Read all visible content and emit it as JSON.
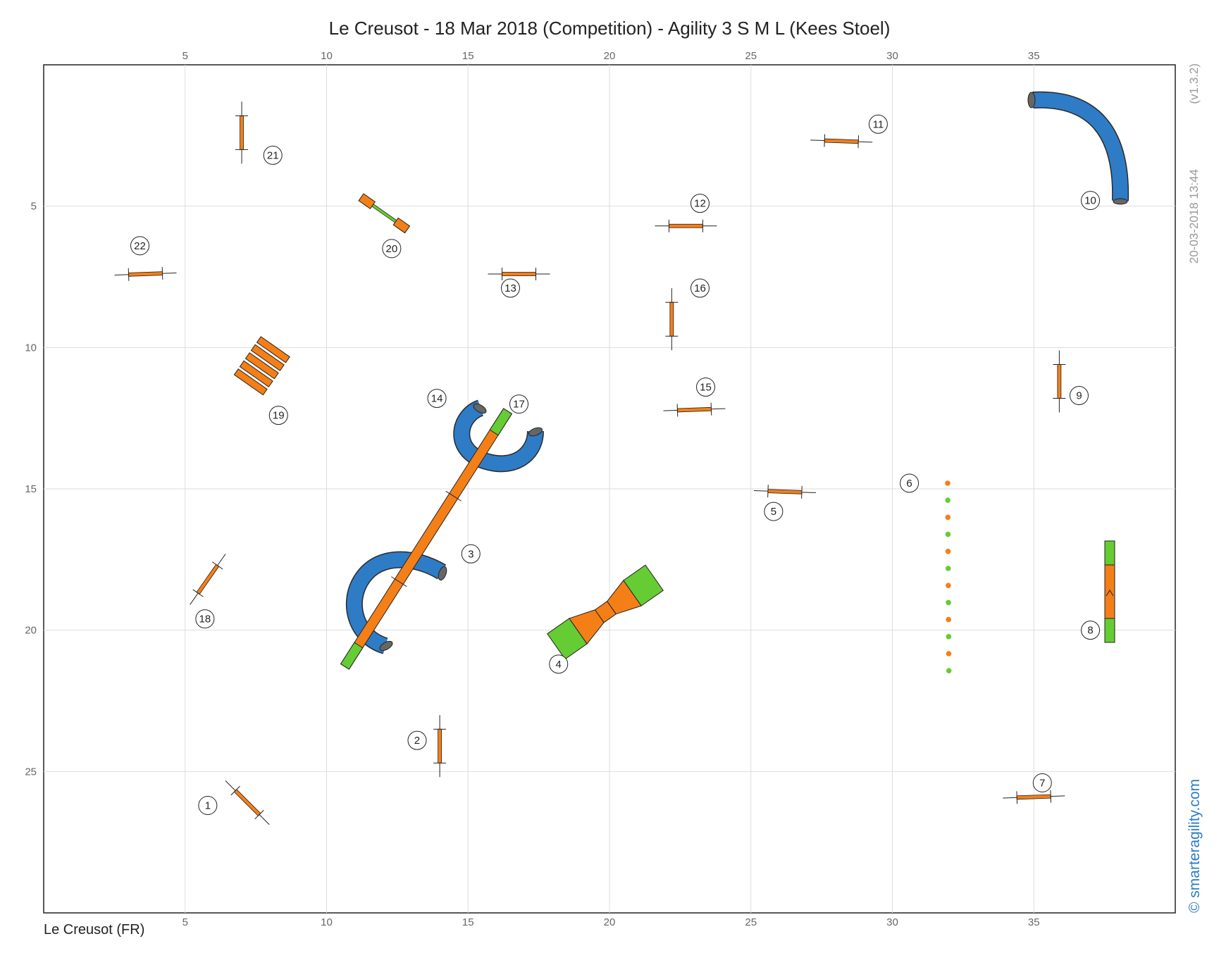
{
  "title": "Le Creusot - 18 Mar 2018 (Competition) - Agility 3 S M L (Kees Stoel)",
  "location": "Le Creusot (FR)",
  "timestamp": "20-03-2018 13:44",
  "version": "(v1.3.2)",
  "brand": "© smarteragility.com",
  "colors": {
    "orange": "#f57f17",
    "green": "#66cc33",
    "blue": "#2e7cc6",
    "grid": "#dddddd",
    "label_circle": "#222222"
  },
  "field": {
    "x_range": [
      0,
      40
    ],
    "y_range": [
      0,
      30
    ]
  },
  "x_ticks": [
    {
      "value": 5,
      "label": "5"
    },
    {
      "value": 10,
      "label": "10"
    },
    {
      "value": 15,
      "label": "15"
    },
    {
      "value": 20,
      "label": "20"
    },
    {
      "value": 25,
      "label": "25"
    },
    {
      "value": 30,
      "label": "30"
    },
    {
      "value": 35,
      "label": "35"
    }
  ],
  "y_ticks": [
    {
      "value": 5,
      "label": "5"
    },
    {
      "value": 10,
      "label": "10"
    },
    {
      "value": 15,
      "label": "15"
    },
    {
      "value": 20,
      "label": "20"
    },
    {
      "value": 25,
      "label": "25"
    }
  ],
  "chart_data": {
    "type": "agility course map",
    "jumps": [
      {
        "number": "1",
        "x": 7.2,
        "y": 26.1,
        "angle": 45
      },
      {
        "number": "2",
        "x": 14.0,
        "y": 24.1,
        "angle": 90
      },
      {
        "number": "5",
        "x": 26.2,
        "y": 15.1,
        "angle": 2
      },
      {
        "number": "7",
        "x": 35.0,
        "y": 25.9,
        "angle": -2
      },
      {
        "number": "9",
        "x": 35.9,
        "y": 11.2,
        "angle": 90
      },
      {
        "number": "11",
        "x": 28.2,
        "y": 2.7,
        "angle": 2
      },
      {
        "number": "12",
        "x": 22.7,
        "y": 5.7,
        "angle": 0
      },
      {
        "number": "13",
        "x": 16.8,
        "y": 7.4,
        "angle": 0
      },
      {
        "number": "15",
        "x": 23.0,
        "y": 12.2,
        "angle": -2
      },
      {
        "number": "16",
        "x": 22.2,
        "y": 9.0,
        "angle": 90
      },
      {
        "number": "18",
        "x": 5.8,
        "y": 18.2,
        "angle": -55
      },
      {
        "number": "21",
        "x": 7.0,
        "y": 2.4,
        "angle": 90
      },
      {
        "number": "22",
        "x": 3.6,
        "y": 7.4,
        "angle": -2
      }
    ],
    "labels": [
      {
        "number": "1",
        "x": 5.8,
        "y": 26.2
      },
      {
        "number": "2",
        "x": 13.2,
        "y": 23.9
      },
      {
        "number": "3",
        "x": 15.1,
        "y": 17.3
      },
      {
        "number": "4",
        "x": 18.2,
        "y": 21.2
      },
      {
        "number": "5",
        "x": 25.8,
        "y": 15.8
      },
      {
        "number": "6",
        "x": 30.6,
        "y": 14.8
      },
      {
        "number": "7",
        "x": 35.3,
        "y": 25.4
      },
      {
        "number": "8",
        "x": 37.0,
        "y": 20.0
      },
      {
        "number": "9",
        "x": 36.6,
        "y": 11.7
      },
      {
        "number": "10",
        "x": 37.0,
        "y": 4.8
      },
      {
        "number": "11",
        "x": 29.5,
        "y": 2.1
      },
      {
        "number": "12",
        "x": 23.2,
        "y": 4.9
      },
      {
        "number": "13",
        "x": 16.5,
        "y": 7.9
      },
      {
        "number": "14",
        "x": 13.9,
        "y": 11.8
      },
      {
        "number": "15",
        "x": 23.4,
        "y": 11.4
      },
      {
        "number": "16",
        "x": 23.2,
        "y": 7.9
      },
      {
        "number": "17",
        "x": 16.8,
        "y": 12.0
      },
      {
        "number": "18",
        "x": 5.7,
        "y": 19.6
      },
      {
        "number": "19",
        "x": 8.3,
        "y": 12.4
      },
      {
        "number": "20",
        "x": 12.3,
        "y": 6.5
      },
      {
        "number": "21",
        "x": 8.1,
        "y": 3.2
      },
      {
        "number": "22",
        "x": 3.4,
        "y": 6.4
      }
    ]
  }
}
